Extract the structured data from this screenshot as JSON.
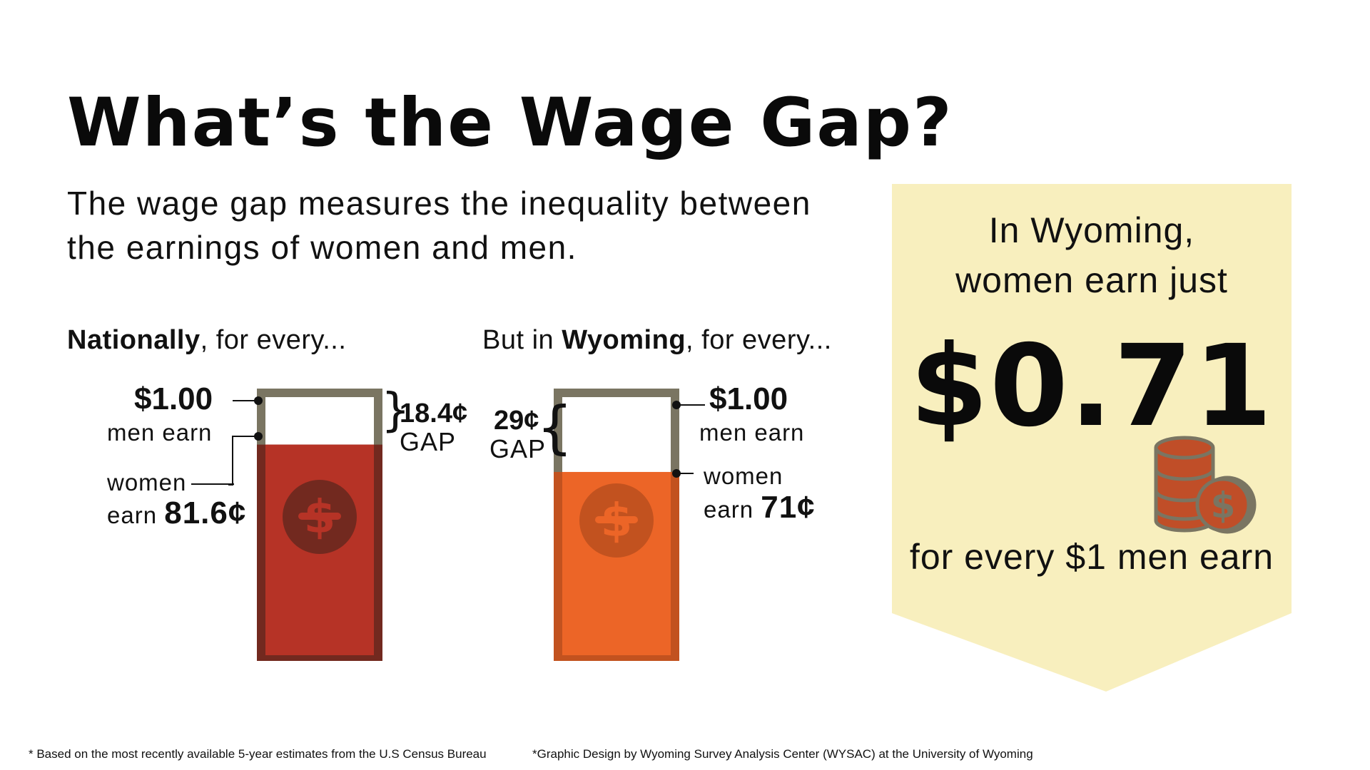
{
  "title": "What’s the Wage Gap?",
  "subtitle": "The wage gap measures the inequality between the earnings of women and men.",
  "national": {
    "heading_bold": "Nationally",
    "heading_rest": ", for every...",
    "men_amount": "$1.00",
    "men_label": "men earn",
    "women_label": "women",
    "earn_word": "earn",
    "women_amount": "81.6¢",
    "gap_amount": "18.4¢",
    "gap_label": "GAP"
  },
  "wyoming": {
    "heading_pre": "But in ",
    "heading_bold": "Wyoming",
    "heading_rest": ", for every...",
    "men_amount": "$1.00",
    "men_label": "men earn",
    "women_label": "women",
    "earn_word": "earn",
    "women_amount": "71¢",
    "gap_amount": "29¢",
    "gap_label": "GAP"
  },
  "banner": {
    "line1": "In Wyoming,",
    "line2": "women earn just",
    "value": "$0.71",
    "line3": "for every $1 men earn"
  },
  "footnotes": {
    "census": "* Based on the most recently available 5-year estimates from the U.S Census Bureau",
    "design": "*Graphic Design by Wyoming Survey Analysis Center (WYSAC) at the University of Wyoming"
  },
  "icons": {
    "bar_symbol": "dollar-coin-icon",
    "banner_symbol": "coin-stack-icon"
  },
  "colors": {
    "frame": "#7a7562",
    "national_fill": "#b63326",
    "national_dark": "#72291f",
    "wyoming_fill": "#ec6527",
    "wyoming_dark": "#c2521f",
    "banner_bg": "#f8efbe"
  },
  "chart_data": {
    "type": "bar",
    "categories": [
      "Nationally",
      "Wyoming"
    ],
    "values": [
      0.816,
      0.71
    ],
    "ylim": [
      0,
      1
    ]
  }
}
